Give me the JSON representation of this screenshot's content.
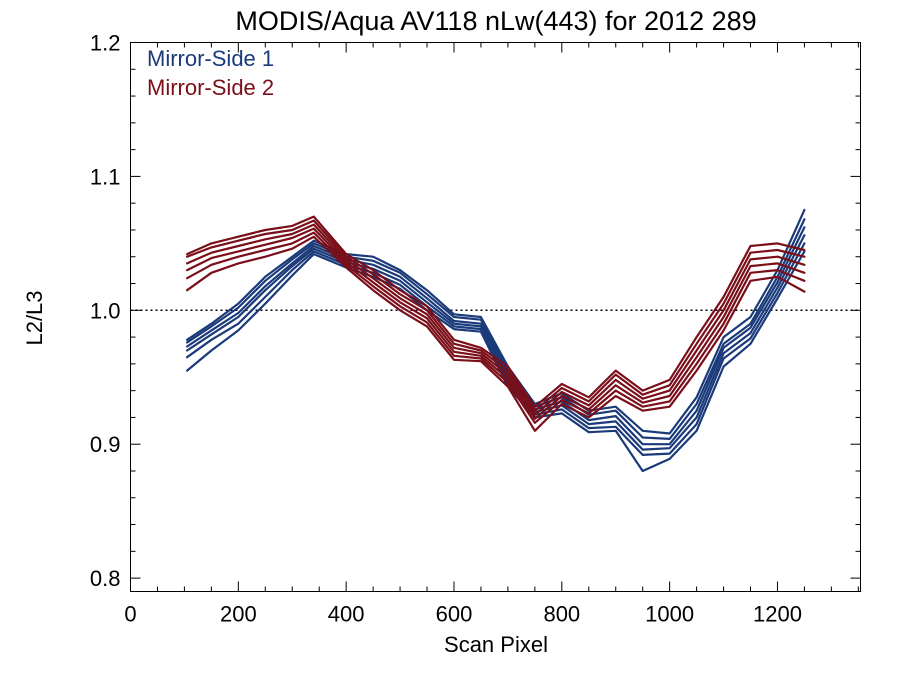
{
  "chart_data": {
    "type": "line",
    "title": "MODIS/Aqua AV118 nLw(443) for 2012 289",
    "xlabel": "Scan Pixel",
    "ylabel": "L2/L3",
    "xlim": [
      0,
      1354
    ],
    "ylim": [
      0.79,
      1.2
    ],
    "xticks": [
      {
        "value": 0,
        "label": "0"
      },
      {
        "value": 200,
        "label": "200"
      },
      {
        "value": 400,
        "label": "400"
      },
      {
        "value": 600,
        "label": "600"
      },
      {
        "value": 800,
        "label": "800"
      },
      {
        "value": 1000,
        "label": "1000"
      },
      {
        "value": 1200,
        "label": "1200"
      }
    ],
    "yticks": [
      {
        "value": 0.8,
        "label": "0.8"
      },
      {
        "value": 0.9,
        "label": "0.9"
      },
      {
        "value": 1.0,
        "label": "1.0"
      },
      {
        "value": 1.1,
        "label": "1.1"
      },
      {
        "value": 1.2,
        "label": "1.2"
      }
    ],
    "x_minor_step": 50,
    "y_minor_step": 0.02,
    "reference_line": {
      "y": 1.0,
      "style": "dotted"
    },
    "grid": false,
    "legend_position": "top-left",
    "legend": [
      {
        "label": "Mirror-Side 1",
        "color": "#1a3a7a"
      },
      {
        "label": "Mirror-Side 2",
        "color": "#7a0f1a"
      }
    ],
    "groups": [
      {
        "label": "Mirror-Side 1",
        "color": "#1a3a7a",
        "x": [
          105,
          150,
          200,
          250,
          300,
          340,
          400,
          450,
          500,
          550,
          600,
          650,
          700,
          750,
          800,
          850,
          900,
          950,
          1000,
          1050,
          1100,
          1150,
          1200,
          1250
        ],
        "series": [
          {
            "values": [
              0.978,
              0.99,
              1.005,
              1.025,
              1.04,
              1.052,
              1.042,
              1.04,
              1.03,
              1.015,
              0.997,
              0.995,
              0.958,
              0.93,
              0.938,
              0.925,
              0.928,
              0.91,
              0.908,
              0.935,
              0.98,
              0.995,
              1.03,
              1.075
            ]
          },
          {
            "values": [
              0.976,
              0.988,
              1.002,
              1.022,
              1.038,
              1.05,
              1.04,
              1.037,
              1.028,
              1.012,
              0.995,
              0.993,
              0.955,
              0.928,
              0.935,
              0.922,
              0.925,
              0.905,
              0.904,
              0.93,
              0.975,
              0.99,
              1.025,
              1.068
            ]
          },
          {
            "values": [
              0.973,
              0.985,
              0.998,
              1.018,
              1.035,
              1.048,
              1.038,
              1.034,
              1.025,
              1.009,
              0.992,
              0.99,
              0.952,
              0.926,
              0.932,
              0.918,
              0.921,
              0.9,
              0.9,
              0.925,
              0.972,
              0.987,
              1.021,
              1.062
            ]
          },
          {
            "values": [
              0.97,
              0.982,
              0.995,
              1.015,
              1.033,
              1.046,
              1.036,
              1.031,
              1.022,
              1.006,
              0.99,
              0.988,
              0.949,
              0.924,
              0.929,
              0.915,
              0.917,
              0.896,
              0.897,
              0.92,
              0.968,
              0.983,
              1.017,
              1.056
            ]
          },
          {
            "values": [
              0.965,
              0.978,
              0.99,
              1.01,
              1.03,
              1.044,
              1.034,
              1.028,
              1.019,
              1.003,
              0.988,
              0.986,
              0.946,
              0.922,
              0.926,
              0.912,
              0.913,
              0.892,
              0.893,
              0.915,
              0.964,
              0.979,
              1.013,
              1.05
            ]
          },
          {
            "values": [
              0.955,
              0.97,
              0.985,
              1.005,
              1.026,
              1.042,
              1.032,
              1.025,
              1.016,
              1.0,
              0.986,
              0.984,
              0.943,
              0.92,
              0.923,
              0.909,
              0.91,
              0.88,
              0.889,
              0.91,
              0.958,
              0.975,
              1.009,
              1.044
            ]
          }
        ]
      },
      {
        "label": "Mirror-Side 2",
        "color": "#7a0f1a",
        "x": [
          105,
          150,
          200,
          250,
          300,
          340,
          400,
          450,
          500,
          550,
          600,
          650,
          700,
          750,
          800,
          850,
          900,
          950,
          1000,
          1050,
          1100,
          1150,
          1200,
          1250
        ],
        "series": [
          {
            "values": [
              1.042,
              1.05,
              1.055,
              1.06,
              1.063,
              1.07,
              1.042,
              1.03,
              1.015,
              1.003,
              0.978,
              0.972,
              0.958,
              0.928,
              0.945,
              0.935,
              0.955,
              0.94,
              0.948,
              0.98,
              1.01,
              1.048,
              1.05,
              1.045
            ]
          },
          {
            "values": [
              1.04,
              1.047,
              1.052,
              1.057,
              1.06,
              1.067,
              1.04,
              1.027,
              1.012,
              1.0,
              0.975,
              0.97,
              0.955,
              0.925,
              0.942,
              0.932,
              0.952,
              0.937,
              0.944,
              0.975,
              1.005,
              1.043,
              1.045,
              1.04
            ]
          },
          {
            "values": [
              1.035,
              1.043,
              1.048,
              1.053,
              1.057,
              1.064,
              1.038,
              1.024,
              1.009,
              0.997,
              0.972,
              0.968,
              0.952,
              0.922,
              0.939,
              0.929,
              0.948,
              0.934,
              0.94,
              0.97,
              1.0,
              1.038,
              1.04,
              1.034
            ]
          },
          {
            "values": [
              1.03,
              1.039,
              1.044,
              1.049,
              1.054,
              1.061,
              1.036,
              1.021,
              1.006,
              0.994,
              0.969,
              0.966,
              0.949,
              0.919,
              0.936,
              0.926,
              0.944,
              0.931,
              0.936,
              0.965,
              0.995,
              1.033,
              1.035,
              1.028
            ]
          },
          {
            "values": [
              1.024,
              1.034,
              1.04,
              1.045,
              1.05,
              1.058,
              1.034,
              1.018,
              1.003,
              0.991,
              0.966,
              0.964,
              0.946,
              0.916,
              0.933,
              0.923,
              0.94,
              0.928,
              0.932,
              0.96,
              0.99,
              1.028,
              1.03,
              1.022
            ]
          },
          {
            "values": [
              1.015,
              1.028,
              1.035,
              1.04,
              1.046,
              1.055,
              1.032,
              1.015,
              1.0,
              0.988,
              0.963,
              0.962,
              0.943,
              0.91,
              0.93,
              0.92,
              0.936,
              0.925,
              0.928,
              0.955,
              0.985,
              1.022,
              1.025,
              1.014
            ]
          }
        ]
      }
    ]
  }
}
